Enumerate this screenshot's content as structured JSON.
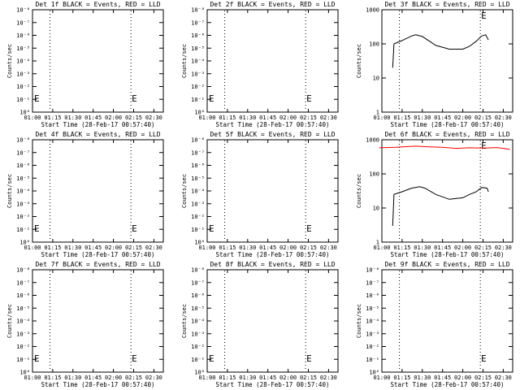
{
  "panels_meta": {
    "xlabel": "Start Time (28-Feb-17 00:57:40)",
    "ylabel": "Counts/sec",
    "x_ticks": [
      "01:00",
      "01:15",
      "01:30",
      "01:45",
      "02:00",
      "02:15",
      "02:30"
    ],
    "marker_label": "E",
    "colors": {
      "events": "#000000",
      "lld": "#ff0000",
      "axis": "#000000"
    }
  },
  "chart_data": [
    {
      "type": "line",
      "title": "Det 1f BLACK = Events, RED = LLD",
      "xlim": [
        "01:00",
        "02:37"
      ],
      "ylim_exp": [
        0,
        8
      ],
      "y_ticks": [
        "10⁰",
        "10⁻¹",
        "10⁻²",
        "10⁻³",
        "10⁻⁴",
        "10⁻⁵",
        "10⁻⁶",
        "10⁻⁷",
        "10⁻⁸"
      ],
      "y_ticks_vals": [
        0,
        1,
        2,
        3,
        4,
        5,
        6,
        7,
        8
      ],
      "y_scale": "log",
      "series": [],
      "vlines": [
        "01:13",
        "02:13"
      ],
      "markers": [
        "00:58",
        "02:13"
      ]
    },
    {
      "type": "line",
      "title": "Det 2f BLACK = Events, RED = LLD",
      "xlim": [
        "01:00",
        "02:37"
      ],
      "ylim_exp": [
        0,
        8
      ],
      "y_ticks": [
        "10⁰",
        "10⁻¹",
        "10⁻²",
        "10⁻³",
        "10⁻⁴",
        "10⁻⁵",
        "10⁻⁶",
        "10⁻⁷",
        "10⁻⁸"
      ],
      "y_ticks_vals": [
        0,
        1,
        2,
        3,
        4,
        5,
        6,
        7,
        8
      ],
      "y_scale": "log",
      "series": [],
      "vlines": [
        "01:13",
        "02:13"
      ],
      "markers": [
        "00:58",
        "02:13"
      ]
    },
    {
      "type": "line",
      "title": "Det 3f BLACK = Events, RED = LLD",
      "xlim": [
        "01:00",
        "02:37"
      ],
      "ylim_exp": [
        0,
        3
      ],
      "y_ticks": [
        "1",
        "10",
        "100",
        "1000"
      ],
      "y_ticks_vals": [
        0,
        1,
        2,
        3
      ],
      "y_scale": "log",
      "series": [
        {
          "color": "#000000",
          "x": [
            "01:08",
            "01:09",
            "01:15",
            "01:22",
            "01:25",
            "01:30",
            "01:40",
            "01:50",
            "02:00",
            "02:05",
            "02:10",
            "02:14",
            "02:17",
            "02:19"
          ],
          "y": [
            20,
            100,
            125,
            170,
            185,
            165,
            90,
            70,
            70,
            85,
            120,
            170,
            185,
            130
          ]
        }
      ],
      "vlines": [
        "01:13",
        "02:13"
      ],
      "markers": [
        "02:13"
      ]
    },
    {
      "type": "line",
      "title": "Det 4f BLACK = Events, RED = LLD",
      "xlim": [
        "01:00",
        "02:37"
      ],
      "ylim_exp": [
        0,
        8
      ],
      "y_ticks": [
        "10⁰",
        "10⁻¹",
        "10⁻²",
        "10⁻³",
        "10⁻⁴",
        "10⁻⁵",
        "10⁻⁶",
        "10⁻⁷",
        "10⁻⁸"
      ],
      "y_ticks_vals": [
        0,
        1,
        2,
        3,
        4,
        5,
        6,
        7,
        8
      ],
      "y_scale": "log",
      "series": [],
      "vlines": [
        "01:13",
        "02:13"
      ],
      "markers": [
        "00:58",
        "02:13"
      ]
    },
    {
      "type": "line",
      "title": "Det 5f BLACK = Events, RED = LLD",
      "xlim": [
        "01:00",
        "02:37"
      ],
      "ylim_exp": [
        0,
        8
      ],
      "y_ticks": [
        "10⁰",
        "10⁻¹",
        "10⁻²",
        "10⁻³",
        "10⁻⁴",
        "10⁻⁵",
        "10⁻⁶",
        "10⁻⁷",
        "10⁻⁸"
      ],
      "y_ticks_vals": [
        0,
        1,
        2,
        3,
        4,
        5,
        6,
        7,
        8
      ],
      "y_scale": "log",
      "series": [],
      "vlines": [
        "01:13",
        "02:13"
      ],
      "markers": [
        "00:58",
        "02:13"
      ]
    },
    {
      "type": "line",
      "title": "Det 6f BLACK = Events, RED = LLD",
      "xlim": [
        "01:00",
        "02:37"
      ],
      "ylim_exp": [
        0,
        3
      ],
      "y_ticks": [
        "1",
        "10",
        "100",
        "1000"
      ],
      "y_ticks_vals": [
        0,
        1,
        2,
        3
      ],
      "y_scale": "log",
      "series": [
        {
          "color": "#000000",
          "x": [
            "01:08",
            "01:09",
            "01:15",
            "01:22",
            "01:28",
            "01:32",
            "01:40",
            "01:50",
            "02:00",
            "02:05",
            "02:10",
            "02:14",
            "02:18",
            "02:19"
          ],
          "y": [
            3,
            25,
            30,
            38,
            42,
            38,
            25,
            18,
            20,
            25,
            30,
            40,
            38,
            30
          ]
        },
        {
          "color": "#ff0000",
          "x": [
            "00:58",
            "01:10",
            "01:25",
            "01:35",
            "01:45",
            "01:55",
            "02:05",
            "02:15",
            "02:25",
            "02:30",
            "02:35"
          ],
          "y": [
            580,
            600,
            650,
            620,
            600,
            560,
            580,
            570,
            590,
            560,
            520
          ]
        }
      ],
      "vlines": [
        "01:13",
        "02:13"
      ],
      "markers": [
        "02:13"
      ]
    },
    {
      "type": "line",
      "title": "Det 7f BLACK = Events, RED = LLD",
      "xlim": [
        "01:00",
        "02:37"
      ],
      "ylim_exp": [
        0,
        8
      ],
      "y_ticks": [
        "10⁰",
        "10⁻¹",
        "10⁻²",
        "10⁻³",
        "10⁻⁴",
        "10⁻⁵",
        "10⁻⁶",
        "10⁻⁷",
        "10⁻⁸"
      ],
      "y_ticks_vals": [
        0,
        1,
        2,
        3,
        4,
        5,
        6,
        7,
        8
      ],
      "y_scale": "log",
      "series": [],
      "vlines": [
        "01:13",
        "02:13"
      ],
      "markers": [
        "00:58",
        "02:13"
      ]
    },
    {
      "type": "line",
      "title": "Det 8f BLACK = Events, RED = LLD",
      "xlim": [
        "01:00",
        "02:37"
      ],
      "ylim_exp": [
        0,
        8
      ],
      "y_ticks": [
        "10⁰",
        "10⁻¹",
        "10⁻²",
        "10⁻³",
        "10⁻⁴",
        "10⁻⁵",
        "10⁻⁶",
        "10⁻⁷",
        "10⁻⁸"
      ],
      "y_ticks_vals": [
        0,
        1,
        2,
        3,
        4,
        5,
        6,
        7,
        8
      ],
      "y_scale": "log",
      "series": [],
      "vlines": [
        "01:13",
        "02:13"
      ],
      "markers": [
        "00:58",
        "02:13"
      ]
    },
    {
      "type": "line",
      "title": "Det 9f BLACK = Events, RED = LLD",
      "xlim": [
        "01:00",
        "02:37"
      ],
      "ylim_exp": [
        0,
        8
      ],
      "y_ticks": [
        "10⁰",
        "10⁻¹",
        "10⁻²",
        "10⁻³",
        "10⁻⁴",
        "10⁻⁵",
        "10⁻⁶",
        "10⁻⁷",
        "10⁻⁸"
      ],
      "y_ticks_vals": [
        0,
        1,
        2,
        3,
        4,
        5,
        6,
        7,
        8
      ],
      "y_scale": "log",
      "series": [],
      "vlines": [
        "01:13",
        "02:13"
      ],
      "markers": [
        "02:13"
      ]
    }
  ]
}
